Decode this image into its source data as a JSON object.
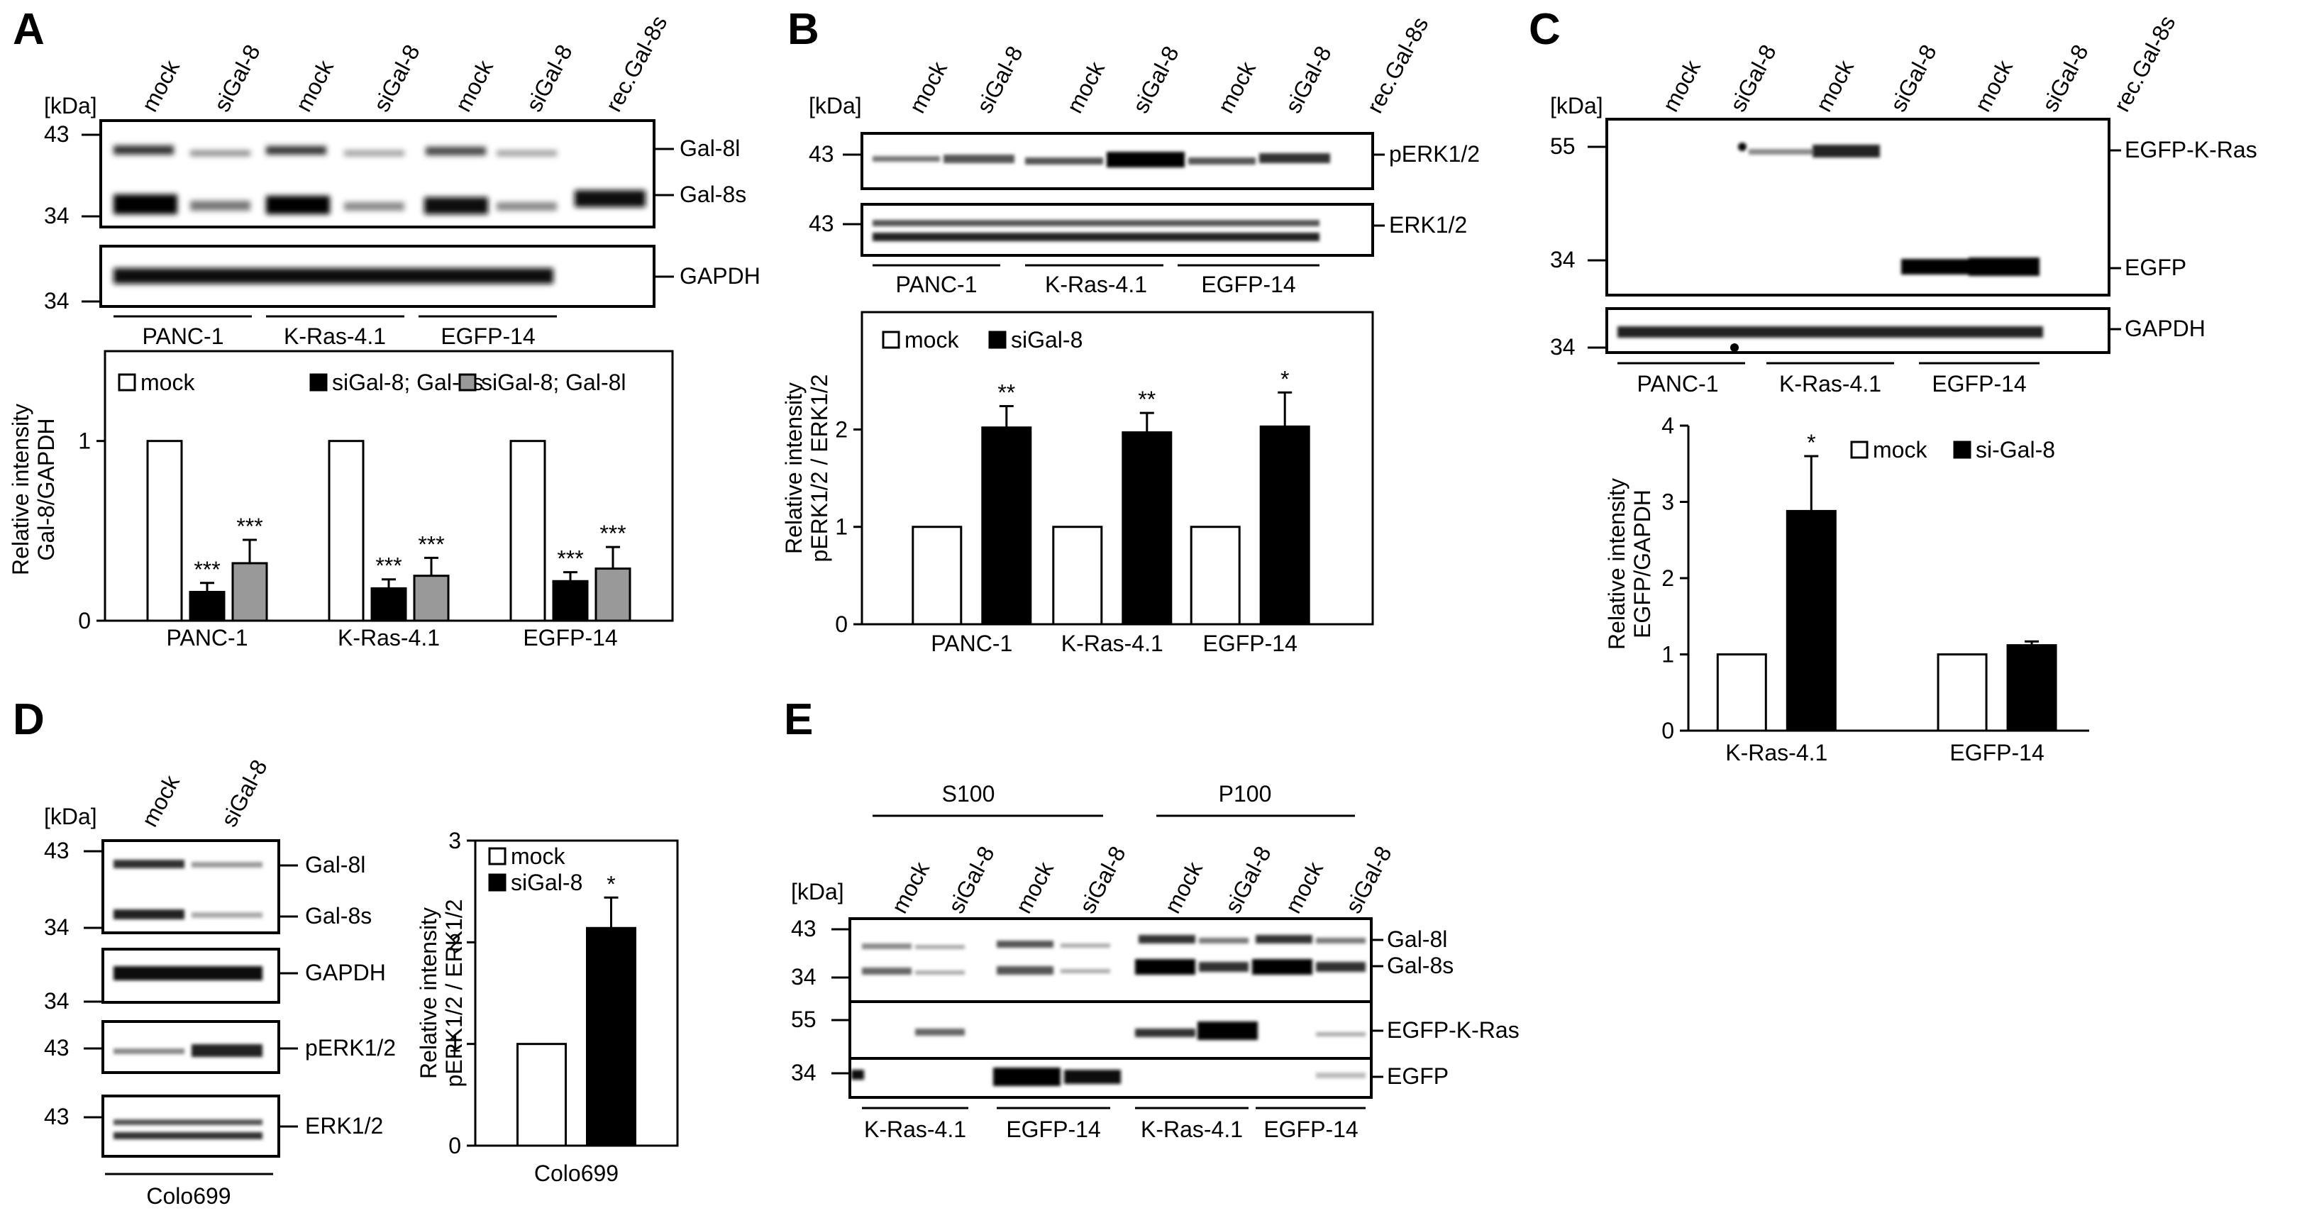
{
  "panels": {
    "A": {
      "letter": "A",
      "kda": "[kDa]",
      "lanes": [
        "mock",
        "siGal-8",
        "mock",
        "siGal-8",
        "mock",
        "siGal-8",
        "rec.Gal-8s"
      ],
      "markers_top": [
        "43",
        "34"
      ],
      "marker_gapdh": "34",
      "band_labels": [
        "Gal-8l",
        "Gal-8s"
      ],
      "gapdh_label": "GAPDH",
      "groups": [
        "PANC-1",
        "K-Ras-4.1",
        "EGFP-14"
      ],
      "bar_levels": {
        "mock": [
          1,
          1,
          1
        ],
        "gal8s": [
          0.16,
          0.18,
          0.22
        ],
        "gal8l": [
          0.32,
          0.25,
          0.29
        ]
      }
    },
    "B": {
      "letter": "B",
      "kda": "[kDa]",
      "lanes": [
        "mock",
        "siGal-8",
        "mock",
        "siGal-8",
        "mock",
        "siGal-8",
        "rec.Gal-8s"
      ],
      "markers": [
        "43",
        "43"
      ],
      "band_labels": [
        "pERK1/2",
        "ERK1/2"
      ],
      "groups": [
        "PANC-1",
        "K-Ras-4.1",
        "EGFP-14"
      ]
    },
    "C": {
      "letter": "C",
      "kda": "[kDa]",
      "lanes": [
        "mock",
        "siGal-8",
        "mock",
        "siGal-8",
        "mock",
        "siGal-8",
        "rec.Gal-8s"
      ],
      "markers": [
        "55",
        "34"
      ],
      "marker_gapdh": "34",
      "band_labels": [
        "EGFP-K-Ras",
        "EGFP"
      ],
      "gapdh_label": "GAPDH",
      "groups": [
        "PANC-1",
        "K-Ras-4.1",
        "EGFP-14"
      ]
    },
    "D": {
      "letter": "D",
      "kda": "[kDa]",
      "lanes": [
        "mock",
        "siGal-8"
      ],
      "markers": [
        "43",
        "34",
        "34",
        "43",
        "43"
      ],
      "band_labels": [
        "Gal-8l",
        "Gal-8s",
        "GAPDH",
        "pERK1/2",
        "ERK1/2"
      ],
      "group": "Colo699"
    },
    "E": {
      "letter": "E",
      "kda": "[kDa]",
      "fractions": [
        "S100",
        "P100"
      ],
      "lanes": [
        "mock",
        "siGal-8",
        "mock",
        "siGal-8",
        "mock",
        "siGal-8",
        "mock",
        "siGal-8"
      ],
      "markers": [
        "43",
        "34",
        "55",
        "34"
      ],
      "band_labels": [
        "Gal-8l",
        "Gal-8s",
        "EGFP-K-Ras",
        "EGFP"
      ],
      "groups": [
        "K-Ras-4.1",
        "EGFP-14",
        "K-Ras-4.1",
        "EGFP-14"
      ]
    }
  },
  "chart_data": [
    {
      "panel": "A",
      "type": "bar",
      "categories": [
        "PANC-1",
        "K-Ras-4.1",
        "EGFP-14"
      ],
      "ylabel_lines": [
        "Relative intensity",
        "Gal-8/GAPDH"
      ],
      "ylim": [
        0,
        1.05
      ],
      "yticks": [
        "0",
        "1"
      ],
      "legend": [
        "mock",
        "siGal-8; Gal-8s",
        "siGal-8; Gal-8l"
      ],
      "series": [
        {
          "name": "mock",
          "values": [
            1,
            1,
            1
          ],
          "errors": [
            0,
            0,
            0
          ],
          "stars": [
            "",
            "",
            ""
          ],
          "color": "#ffffff"
        },
        {
          "name": "siGal-8; Gal-8s",
          "values": [
            0.16,
            0.18,
            0.22
          ],
          "errors": [
            0.05,
            0.05,
            0.05
          ],
          "stars": [
            "***",
            "***",
            "***"
          ],
          "color": "#000000"
        },
        {
          "name": "siGal-8; Gal-8l",
          "values": [
            0.32,
            0.25,
            0.29
          ],
          "errors": [
            0.13,
            0.1,
            0.12
          ],
          "stars": [
            "***",
            "***",
            "***"
          ],
          "color": "#999999"
        }
      ]
    },
    {
      "panel": "B",
      "type": "bar",
      "categories": [
        "PANC-1",
        "K-Ras-4.1",
        "EGFP-14"
      ],
      "ylabel_lines": [
        "Relative intensity",
        "pERK1/2 / ERK1/2"
      ],
      "ylim": [
        0,
        2.5
      ],
      "yticks": [
        "0",
        "1",
        "2"
      ],
      "legend": [
        "mock",
        "siGal-8"
      ],
      "series": [
        {
          "name": "mock",
          "values": [
            1,
            1,
            1
          ],
          "errors": [
            0,
            0,
            0
          ],
          "stars": [
            "",
            "",
            ""
          ],
          "color": "#ffffff"
        },
        {
          "name": "siGal-8",
          "values": [
            2.02,
            1.97,
            2.03
          ],
          "errors": [
            0.22,
            0.2,
            0.35
          ],
          "stars": [
            "**",
            "**",
            "*"
          ],
          "color": "#000000"
        }
      ]
    },
    {
      "panel": "C",
      "type": "bar",
      "categories": [
        "K-Ras-4.1",
        "EGFP-14"
      ],
      "ylabel_lines": [
        "Relative intensity",
        "EGFP/GAPDH"
      ],
      "ylim": [
        0,
        4
      ],
      "yticks": [
        "0",
        "1",
        "2",
        "3",
        "4"
      ],
      "legend": [
        "mock",
        "si-Gal-8"
      ],
      "series": [
        {
          "name": "mock",
          "values": [
            1,
            1
          ],
          "errors": [
            0,
            0
          ],
          "stars": [
            "",
            ""
          ],
          "color": "#ffffff"
        },
        {
          "name": "si-Gal-8",
          "values": [
            2.88,
            1.12
          ],
          "errors": [
            0.72,
            0.05
          ],
          "stars": [
            "*",
            ""
          ],
          "color": "#000000"
        }
      ]
    },
    {
      "panel": "D",
      "type": "bar",
      "categories": [
        "Colo699"
      ],
      "ylabel_lines": [
        "Relative intensity",
        "pERK1/2 / ERK1/2"
      ],
      "ylim": [
        0,
        3
      ],
      "yticks": [
        "0",
        "1",
        "2",
        "3"
      ],
      "legend": [
        "mock",
        "siGal-8"
      ],
      "series": [
        {
          "name": "mock",
          "values": [
            1
          ],
          "errors": [
            0
          ],
          "stars": [
            ""
          ],
          "color": "#ffffff"
        },
        {
          "name": "siGal-8",
          "values": [
            2.14
          ],
          "errors": [
            0.3
          ],
          "stars": [
            "*"
          ],
          "color": "#000000"
        }
      ]
    }
  ]
}
